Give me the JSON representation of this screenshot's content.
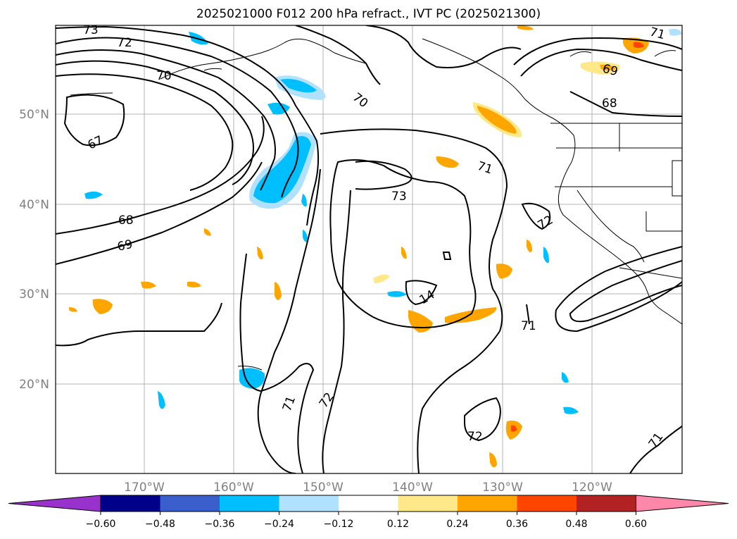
{
  "title": "2025021000 F012 200 hPa refract., IVT PC (2025021300)",
  "lat_labels": [
    "50°N",
    "40°N",
    "30°N",
    "20°N"
  ],
  "lon_labels": [
    "170°W",
    "160°W",
    "150°W",
    "140°W",
    "130°W",
    "120°W"
  ],
  "contour_labels": [
    "73",
    "72",
    "70",
    "67",
    "68",
    "69",
    "70",
    "73",
    "71",
    "72",
    "14",
    "71",
    "71",
    "72",
    "72",
    "71",
    "69",
    "68",
    "71"
  ],
  "colorbar": {
    "ticks": [
      "−0.60",
      "−0.48",
      "−0.36",
      "−0.24",
      "−0.12",
      "0.12",
      "0.24",
      "0.36",
      "0.48",
      "0.60"
    ],
    "colors": [
      "#9932cc",
      "#00008b",
      "#3a5fcd",
      "#00bfff",
      "#b0e2ff",
      "#ffffff",
      "#ffe88a",
      "#ffa500",
      "#ff4500",
      "#b22222",
      "#ff88aa"
    ]
  }
}
